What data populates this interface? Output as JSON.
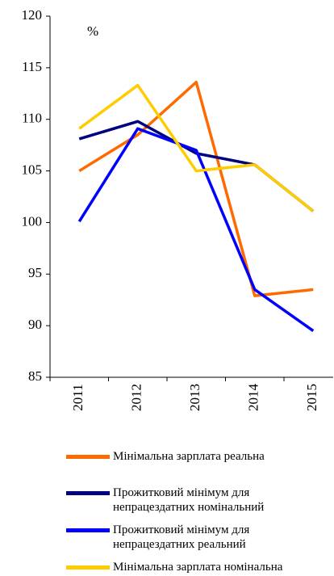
{
  "chart_data": {
    "type": "line",
    "annotations": [
      "%"
    ],
    "categories": [
      "2011",
      "2012",
      "2013",
      "2014",
      "2015"
    ],
    "series": [
      {
        "name": "Мінімальна зарплата реальна",
        "color": "#ff6a00",
        "values": [
          105.0,
          108.5,
          113.6,
          92.9,
          93.5
        ]
      },
      {
        "name": "Прожитковий мінімум для непрацездатних номінальний",
        "color": "#000080",
        "values": [
          108.1,
          109.8,
          106.7,
          105.6,
          101.1
        ]
      },
      {
        "name": "Прожитковий мінімум для непрацездатних реальний",
        "color": "#0000ff",
        "values": [
          100.1,
          109.1,
          107.0,
          93.5,
          89.5
        ]
      },
      {
        "name": "Мінімальна зарплата номінальна",
        "color": "#ffcc00",
        "values": [
          109.1,
          113.3,
          105.0,
          105.6,
          101.1
        ]
      }
    ],
    "ylim": [
      85,
      120
    ],
    "yticks": [
      85,
      90,
      95,
      100,
      105,
      110,
      115,
      120
    ]
  }
}
